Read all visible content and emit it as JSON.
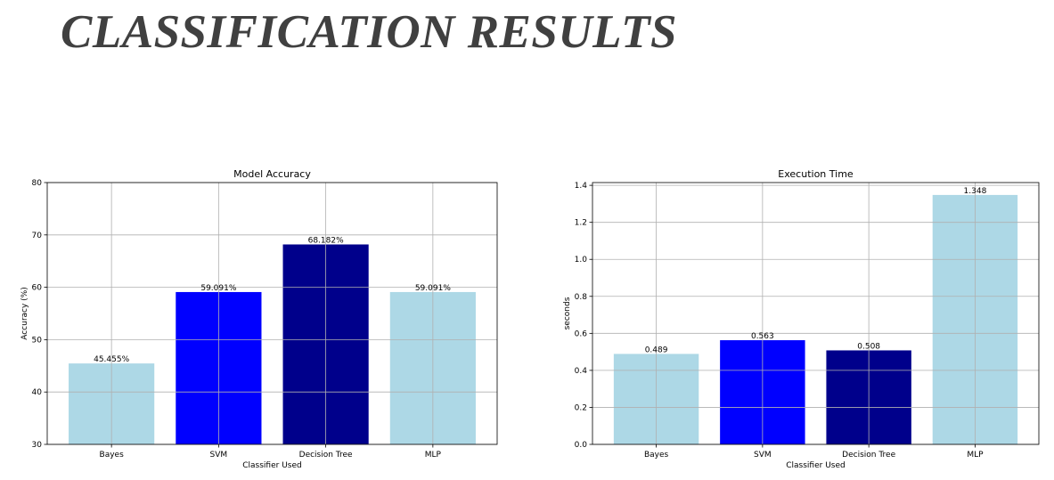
{
  "slide": {
    "title": "CLASSIFICATION RESULTS"
  },
  "chart_data": [
    {
      "type": "bar",
      "title": "Model Accuracy",
      "xlabel": "Classifier Used",
      "ylabel": "Accuracy (%)",
      "categories": [
        "Bayes",
        "SVM",
        "Decision Tree",
        "MLP"
      ],
      "values": [
        45.455,
        59.091,
        68.182,
        59.091
      ],
      "data_labels": [
        "45.455%",
        "59.091%",
        "68.182%",
        "59.091%"
      ],
      "colors": [
        "#add8e6",
        "#0000ff",
        "#00008b",
        "#add8e6"
      ],
      "ylim": [
        30,
        80
      ],
      "yticks": [
        30,
        40,
        50,
        60,
        70,
        80
      ],
      "ytick_labels": [
        "30",
        "40",
        "50",
        "60",
        "70",
        "80"
      ],
      "grid": true
    },
    {
      "type": "bar",
      "title": "Execution Time",
      "xlabel": "Classifier Used",
      "ylabel": "seconds",
      "categories": [
        "Bayes",
        "SVM",
        "Decision Tree",
        "MLP"
      ],
      "values": [
        0.489,
        0.563,
        0.508,
        1.348
      ],
      "data_labels": [
        "0.489",
        "0.563",
        "0.508",
        "1.348"
      ],
      "colors": [
        "#add8e6",
        "#0000ff",
        "#00008b",
        "#add8e6"
      ],
      "ylim": [
        0,
        1.415
      ],
      "yticks": [
        0,
        0.2,
        0.4,
        0.6,
        0.8,
        1.0,
        1.2,
        1.4
      ],
      "ytick_labels": [
        "0.0",
        "0.2",
        "0.4",
        "0.6",
        "0.8",
        "1.0",
        "1.2",
        "1.4"
      ],
      "grid": true
    }
  ]
}
